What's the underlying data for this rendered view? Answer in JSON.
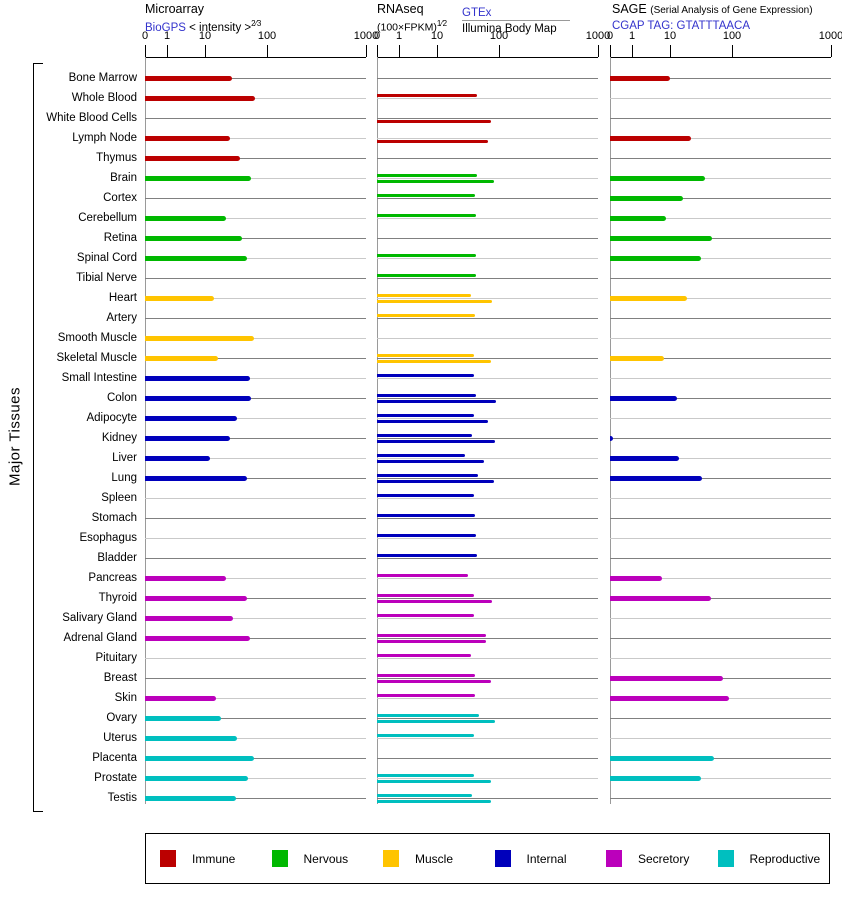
{
  "left_axis_label": "Major Tissues",
  "header": {
    "microarray": {
      "title": "Microarray",
      "link": "BioGPS",
      "subtitle": "< intensity >",
      "sup": "2⁄3"
    },
    "rnaseq": {
      "title": "RNAseq",
      "formula": "(100×FPKM)",
      "sup": "1⁄2",
      "link": "GTEx",
      "sub": "Illumina Body Map"
    },
    "sage": {
      "title": "SAGE",
      "note": "(Serial Analysis of Gene Expression)",
      "tag_line": "CGAP TAG: GTATTTAACA"
    }
  },
  "legend": {
    "items": [
      {
        "label": "Immune",
        "color": "#BB0000"
      },
      {
        "label": "Nervous",
        "color": "#00B800"
      },
      {
        "label": "Muscle",
        "color": "#FFC400"
      },
      {
        "label": "Internal",
        "color": "#0000BB"
      },
      {
        "label": "Secretory",
        "color": "#BB00BB"
      },
      {
        "label": "Reproductive",
        "color": "#00BFBF"
      }
    ]
  },
  "chart_data": {
    "type": "bar",
    "orientation": "horizontal",
    "scale": "logarithmic decades 0,1,10,100,1000",
    "axis_ticks": [
      0,
      1,
      10,
      100,
      1000
    ],
    "panels": [
      {
        "key": "microarray",
        "label": "Microarray (BioGPS, intensity^2/3)",
        "series": [
          "microarray"
        ]
      },
      {
        "key": "rnaseq",
        "label": "RNAseq (100×FPKM)^1/2 — GTEx (upper bar) / Illumina Body Map (lower bar)",
        "series": [
          "gtex",
          "illumina"
        ]
      },
      {
        "key": "sage",
        "label": "SAGE CGAP TAG: GTATTTAACA",
        "series": [
          "sage"
        ]
      }
    ],
    "group_colors": {
      "Immune": "#BB0000",
      "Nervous": "#00B800",
      "Muscle": "#FFC400",
      "Internal": "#0000BB",
      "Secretory": "#BB00BB",
      "Reproductive": "#00BFBF"
    },
    "tissues": [
      {
        "name": "Bone Marrow",
        "group": "Immune",
        "microarray": 27,
        "gtex": null,
        "illumina": null,
        "sage": 10
      },
      {
        "name": "Whole Blood",
        "group": "Immune",
        "microarray": 64,
        "gtex": 44,
        "illumina": null,
        "sage": null
      },
      {
        "name": "White Blood Cells",
        "group": "Immune",
        "microarray": null,
        "gtex": null,
        "illumina": 74,
        "sage": null
      },
      {
        "name": "Lymph Node",
        "group": "Immune",
        "microarray": 25,
        "gtex": null,
        "illumina": 66,
        "sage": 22
      },
      {
        "name": "Thymus",
        "group": "Immune",
        "microarray": 37,
        "gtex": null,
        "illumina": null,
        "sage": null
      },
      {
        "name": "Brain",
        "group": "Nervous",
        "microarray": 55,
        "gtex": 44,
        "illumina": 83,
        "sage": 37
      },
      {
        "name": "Cortex",
        "group": "Nervous",
        "microarray": null,
        "gtex": 41,
        "illumina": null,
        "sage": 16
      },
      {
        "name": "Cerebellum",
        "group": "Nervous",
        "microarray": 22,
        "gtex": 43,
        "illumina": null,
        "sage": 8
      },
      {
        "name": "Retina",
        "group": "Nervous",
        "microarray": 40,
        "gtex": null,
        "illumina": null,
        "sage": 48
      },
      {
        "name": "Spinal Cord",
        "group": "Nervous",
        "microarray": 48,
        "gtex": 43,
        "illumina": null,
        "sage": 32
      },
      {
        "name": "Tibial Nerve",
        "group": "Nervous",
        "microarray": null,
        "gtex": 43,
        "illumina": null,
        "sage": null
      },
      {
        "name": "Heart",
        "group": "Muscle",
        "microarray": 14,
        "gtex": 36,
        "illumina": 77,
        "sage": 19
      },
      {
        "name": "Artery",
        "group": "Muscle",
        "microarray": null,
        "gtex": 41,
        "illumina": null,
        "sage": null
      },
      {
        "name": "Smooth Muscle",
        "group": "Muscle",
        "microarray": 62,
        "gtex": null,
        "illumina": null,
        "sage": null
      },
      {
        "name": "Skeletal Muscle",
        "group": "Muscle",
        "microarray": 16,
        "gtex": 40,
        "illumina": 74,
        "sage": 7
      },
      {
        "name": "Small Intestine",
        "group": "Internal",
        "microarray": 53,
        "gtex": 40,
        "illumina": null,
        "sage": null
      },
      {
        "name": "Colon",
        "group": "Internal",
        "microarray": 55,
        "gtex": 43,
        "illumina": 90,
        "sage": 13
      },
      {
        "name": "Adipocyte",
        "group": "Internal",
        "microarray": 33,
        "gtex": 40,
        "illumina": 67,
        "sage": null
      },
      {
        "name": "Kidney",
        "group": "Internal",
        "microarray": 25,
        "gtex": 37,
        "illumina": 85,
        "sage": 0.15
      },
      {
        "name": "Liver",
        "group": "Internal",
        "microarray": 12,
        "gtex": 28,
        "illumina": 58,
        "sage": 14
      },
      {
        "name": "Lung",
        "group": "Internal",
        "microarray": 47,
        "gtex": 46,
        "illumina": 83,
        "sage": 33
      },
      {
        "name": "Spleen",
        "group": "Internal",
        "microarray": null,
        "gtex": 39,
        "illumina": null,
        "sage": null
      },
      {
        "name": "Stomach",
        "group": "Internal",
        "microarray": null,
        "gtex": 41,
        "illumina": null,
        "sage": null
      },
      {
        "name": "Esophagus",
        "group": "Internal",
        "microarray": null,
        "gtex": 42,
        "illumina": null,
        "sage": null
      },
      {
        "name": "Bladder",
        "group": "Internal",
        "microarray": null,
        "gtex": 44,
        "illumina": null,
        "sage": null
      },
      {
        "name": "Pancreas",
        "group": "Secretory",
        "microarray": 22,
        "gtex": 32,
        "illumina": null,
        "sage": 6
      },
      {
        "name": "Thyroid",
        "group": "Secretory",
        "microarray": 48,
        "gtex": 40,
        "illumina": 76,
        "sage": 46
      },
      {
        "name": "Salivary Gland",
        "group": "Secretory",
        "microarray": 28,
        "gtex": 40,
        "illumina": null,
        "sage": null
      },
      {
        "name": "Adrenal Gland",
        "group": "Secretory",
        "microarray": 53,
        "gtex": 62,
        "illumina": 62,
        "sage": null
      },
      {
        "name": "Pituitary",
        "group": "Secretory",
        "microarray": null,
        "gtex": 36,
        "illumina": null,
        "sage": null
      },
      {
        "name": "Breast",
        "group": "Secretory",
        "microarray": null,
        "gtex": 41,
        "illumina": 74,
        "sage": 72
      },
      {
        "name": "Skin",
        "group": "Secretory",
        "microarray": 15,
        "gtex": 41,
        "illumina": null,
        "sage": 88
      },
      {
        "name": "Ovary",
        "group": "Reproductive",
        "microarray": 18,
        "gtex": 48,
        "illumina": 85,
        "sage": null
      },
      {
        "name": "Uterus",
        "group": "Reproductive",
        "microarray": 33,
        "gtex": 40,
        "illumina": null,
        "sage": null
      },
      {
        "name": "Placenta",
        "group": "Reproductive",
        "microarray": 62,
        "gtex": null,
        "illumina": null,
        "sage": 51
      },
      {
        "name": "Prostate",
        "group": "Reproductive",
        "microarray": 50,
        "gtex": 40,
        "illumina": 74,
        "sage": 32
      },
      {
        "name": "Testis",
        "group": "Reproductive",
        "microarray": 32,
        "gtex": 37,
        "illumina": 74,
        "sage": null
      }
    ]
  }
}
